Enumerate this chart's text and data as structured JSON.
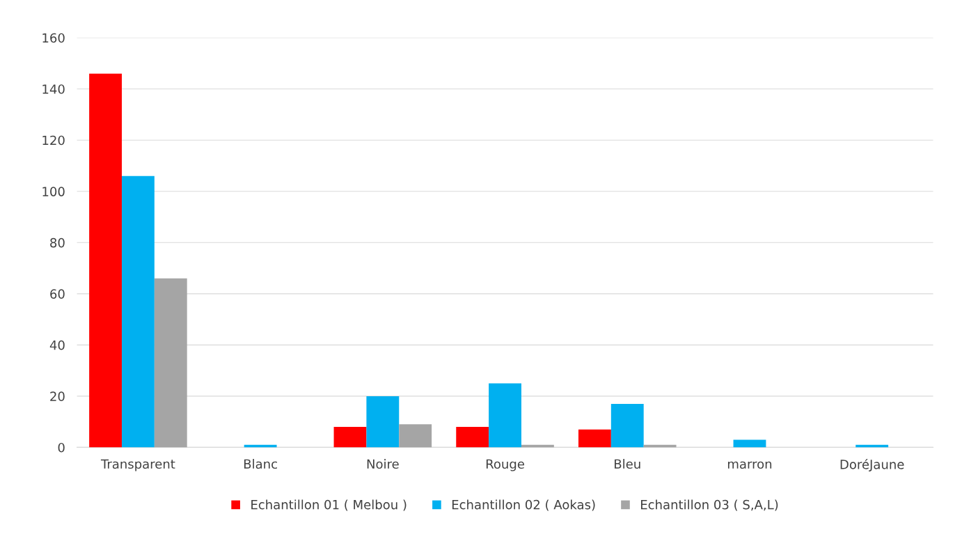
{
  "chart_data": {
    "type": "bar",
    "categories": [
      "Transparent",
      "Blanc",
      "Noire",
      "Rouge",
      "Bleu",
      "marron",
      "DoréJaune"
    ],
    "series": [
      {
        "name": "Echantillon 01 ( Melbou )",
        "color": "#ff0000",
        "values": [
          146,
          null,
          8,
          8,
          7,
          null,
          null
        ]
      },
      {
        "name": "Echantillon 02 ( Aokas)",
        "color": "#00b0f0",
        "values": [
          106,
          1,
          20,
          25,
          17,
          3,
          1
        ]
      },
      {
        "name": "Echantillon 03 ( S,A,L)",
        "color": "#a5a5a5",
        "values": [
          66,
          null,
          9,
          1,
          1,
          null,
          null
        ]
      }
    ],
    "ylim": [
      0,
      160
    ],
    "yticks": [
      0,
      20,
      40,
      60,
      80,
      100,
      120,
      140,
      160
    ],
    "grid": "y",
    "legend": "bottom"
  }
}
